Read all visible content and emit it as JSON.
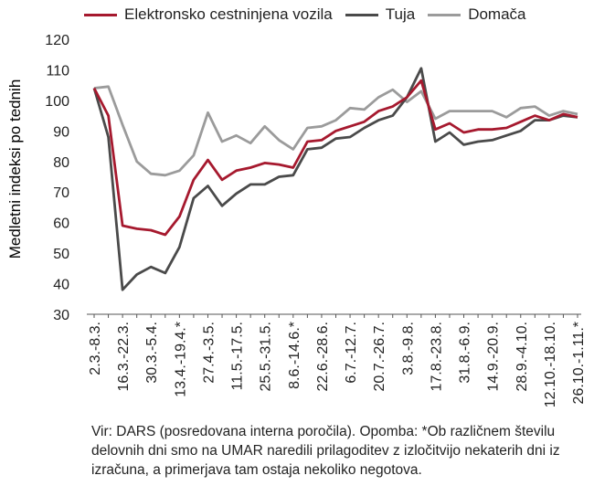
{
  "chart_data": {
    "type": "line",
    "ylabel": "Medletni indeksi po tednih",
    "ylim": [
      30,
      120
    ],
    "yticks": [
      30,
      40,
      50,
      60,
      70,
      80,
      90,
      100,
      110,
      120
    ],
    "grid": false,
    "legend_position": "top",
    "categories": [
      "2.3.-8.3.",
      "",
      "16.3.-22.3.",
      "",
      "30.3.-5.4.",
      "",
      "13.4.-19.4.*",
      "",
      "27.4.-3.5.",
      "",
      "11.5.-17.5.",
      "",
      "25.5.-31.5.",
      "",
      "8.6.-14.6.*",
      "",
      "22.6.-28.6.",
      "",
      "6.7.-12.7.",
      "",
      "20.7.-26.7.",
      "",
      "3.8.-9.8.",
      "",
      "17.8.-23.8.",
      "",
      "31.8.-6.9.",
      "",
      "14.9.-20.9.",
      "",
      "28.9.-4.10.",
      "",
      "12.10.-18.10.",
      "",
      "26.10.-1.11.*"
    ],
    "series": [
      {
        "name": "Elektronsko cestninjena vozila",
        "color": "#a6192e",
        "values": [
          104,
          95,
          59,
          58,
          57.5,
          56,
          62,
          74,
          80.5,
          74,
          77,
          78,
          79.5,
          79,
          78,
          86.5,
          87,
          90,
          91.5,
          93,
          96.5,
          98,
          101,
          106.5,
          90.5,
          92.5,
          89.5,
          90.5,
          90.5,
          91,
          93,
          95,
          93.5,
          95.5,
          94.5
        ]
      },
      {
        "name": "Tuja",
        "color": "#4a4a4a",
        "values": [
          104,
          88,
          38,
          43,
          45.5,
          43.5,
          52,
          68,
          72,
          65.5,
          69.5,
          72.5,
          72.5,
          75,
          75.5,
          84,
          84.5,
          87.5,
          88,
          91,
          93.5,
          95,
          101,
          110.5,
          86.5,
          89.5,
          85.5,
          86.5,
          87,
          88.5,
          90,
          93.5,
          93.5,
          95,
          94.5
        ]
      },
      {
        "name": "Domača",
        "color": "#9b9b9b",
        "values": [
          104,
          104.5,
          92,
          80,
          76,
          75.5,
          77,
          82,
          96,
          86.5,
          88.5,
          86,
          91.5,
          87,
          84,
          91,
          91.5,
          93.5,
          97.5,
          97,
          101,
          103.5,
          99.5,
          103,
          94,
          96.5,
          96.5,
          96.5,
          96.5,
          94.5,
          97.5,
          98,
          95,
          96.5,
          95.5
        ]
      }
    ]
  },
  "source_note": "Vir: DARS (posredovana interna poročila). Opomba: *Ob različnem številu delovnih dni smo na UMAR naredili prilagoditev z izločitvijo nekaterih dni iz izračuna, a primerjava tam ostaja nekoliko negotova."
}
